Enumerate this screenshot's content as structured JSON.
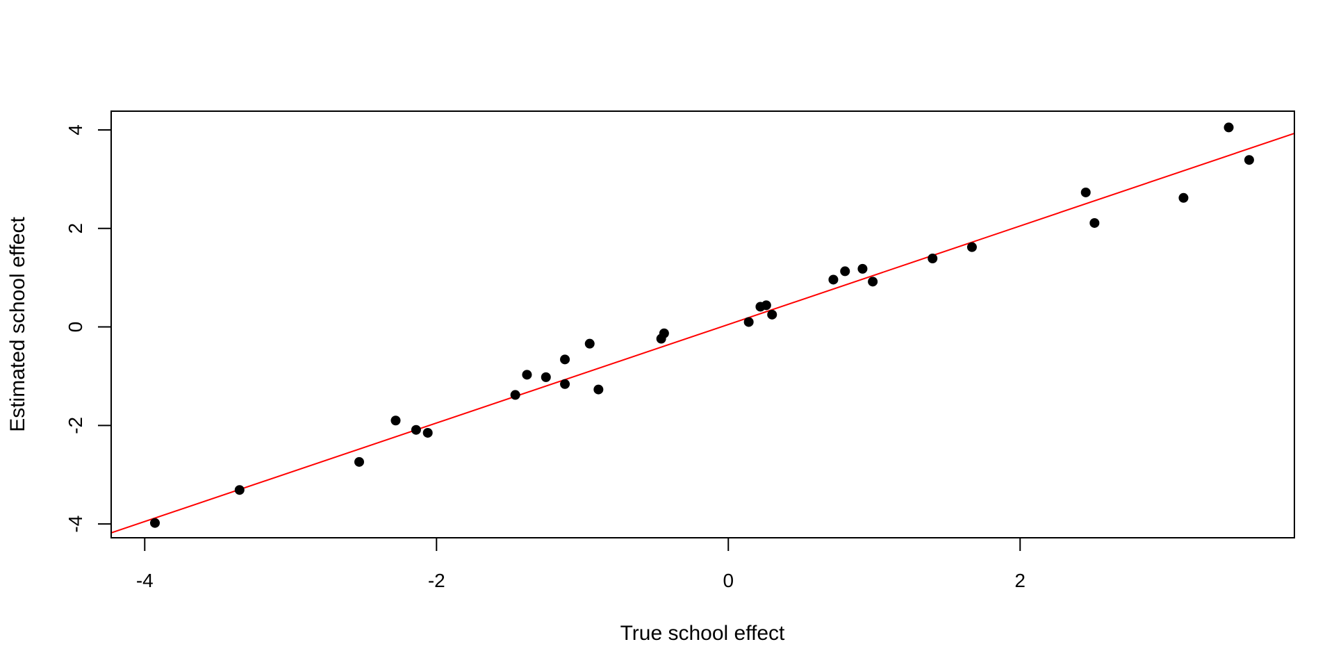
{
  "chart_data": {
    "type": "scatter",
    "title": "",
    "xlabel": "True school effect",
    "ylabel": "Estimated school effect",
    "xlim": [
      -4.23,
      3.88
    ],
    "ylim": [
      -4.28,
      4.38
    ],
    "xticks": [
      -4,
      -2,
      0,
      2
    ],
    "yticks": [
      -4,
      -2,
      0,
      2,
      4
    ],
    "xtick_labels": [
      "-4",
      "-2",
      "0",
      "2"
    ],
    "ytick_labels": [
      "-4",
      "-2",
      "0",
      "2",
      "4"
    ],
    "grid": false,
    "legend": "none",
    "point_color": "#000000",
    "line_color": "#ff0000",
    "fit_line": {
      "intercept": 0.05,
      "slope": 1.0
    },
    "points": [
      {
        "x": -3.93,
        "y": -3.98
      },
      {
        "x": -3.35,
        "y": -3.31
      },
      {
        "x": -2.53,
        "y": -2.74
      },
      {
        "x": -2.28,
        "y": -1.9
      },
      {
        "x": -2.14,
        "y": -2.09
      },
      {
        "x": -2.06,
        "y": -2.15
      },
      {
        "x": -1.46,
        "y": -1.38
      },
      {
        "x": -1.38,
        "y": -0.97
      },
      {
        "x": -1.25,
        "y": -1.02
      },
      {
        "x": -1.12,
        "y": -0.66
      },
      {
        "x": -1.12,
        "y": -1.16
      },
      {
        "x": -0.95,
        "y": -0.34
      },
      {
        "x": -0.89,
        "y": -1.27
      },
      {
        "x": -0.46,
        "y": -0.24
      },
      {
        "x": -0.44,
        "y": -0.13
      },
      {
        "x": 0.14,
        "y": 0.1
      },
      {
        "x": 0.22,
        "y": 0.41
      },
      {
        "x": 0.26,
        "y": 0.44
      },
      {
        "x": 0.3,
        "y": 0.25
      },
      {
        "x": 0.72,
        "y": 0.96
      },
      {
        "x": 0.8,
        "y": 1.13
      },
      {
        "x": 0.92,
        "y": 1.18
      },
      {
        "x": 0.99,
        "y": 0.92
      },
      {
        "x": 1.4,
        "y": 1.39
      },
      {
        "x": 1.67,
        "y": 1.62
      },
      {
        "x": 2.45,
        "y": 2.73
      },
      {
        "x": 2.51,
        "y": 2.11
      },
      {
        "x": 3.12,
        "y": 2.62
      },
      {
        "x": 3.43,
        "y": 4.05
      },
      {
        "x": 3.57,
        "y": 3.39
      }
    ]
  }
}
